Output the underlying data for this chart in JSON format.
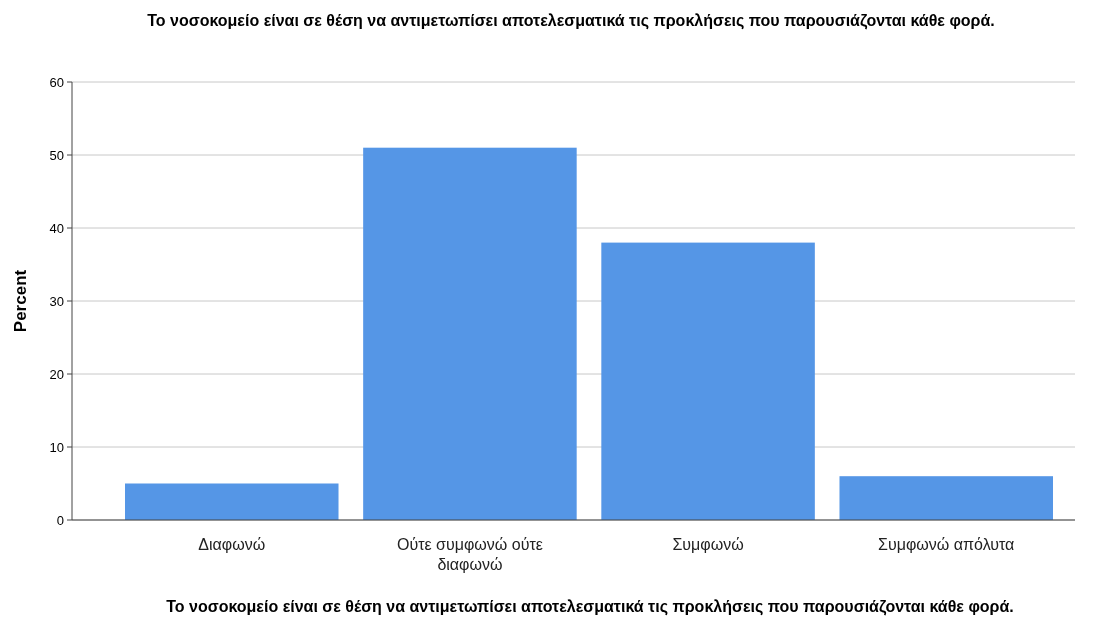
{
  "chart_data": {
    "type": "bar",
    "title": "Το νοσοκομείο είναι σε θέση να αντιμετωπίσει αποτελεσματικά τις προκλήσεις που παρουσιάζονται κάθε φορά.",
    "xlabel": "Το νοσοκομείο είναι σε θέση να αντιμετωπίσει αποτελεσματικά τις προκλήσεις που παρουσιάζονται κάθε φορά.",
    "ylabel": "Percent",
    "categories": [
      "Διαφωνώ",
      "Ούτε συμφωνώ ούτε διαφωνώ",
      "Συμφωνώ",
      "Συμφωνώ απόλυτα"
    ],
    "values": [
      5,
      51,
      38,
      6
    ],
    "color": "#5596e6",
    "ylim": [
      0,
      60
    ],
    "yticks": [
      0,
      10,
      20,
      30,
      40,
      50,
      60
    ],
    "grid": "y"
  }
}
